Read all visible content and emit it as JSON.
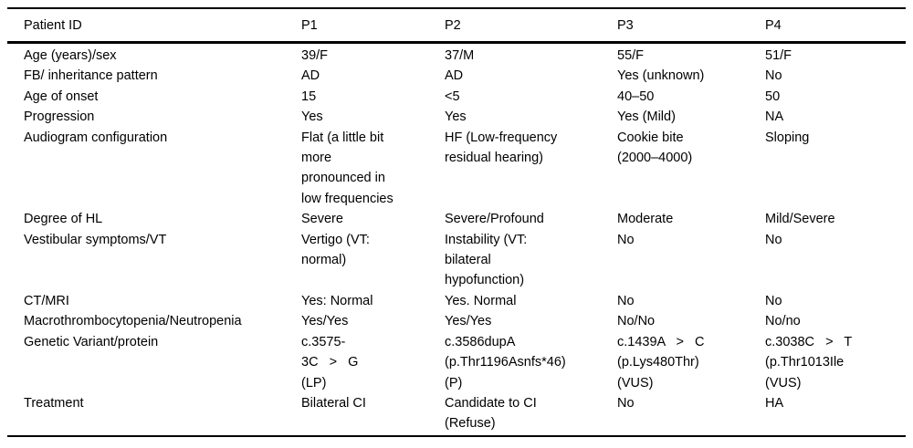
{
  "table": {
    "header": [
      "Patient ID",
      "P1",
      "P2",
      "P3",
      "P4"
    ],
    "rows": [
      {
        "label": "Age (years)/sex",
        "cells": [
          "39/F",
          "37/M",
          "55/F",
          "51/F"
        ]
      },
      {
        "label": "FB/ inheritance pattern",
        "cells": [
          "AD",
          "AD",
          "Yes (unknown)",
          "No"
        ]
      },
      {
        "label": "Age of onset",
        "cells": [
          "15",
          "<5",
          "40–50",
          "50"
        ]
      },
      {
        "label": "Progression",
        "cells": [
          "Yes",
          "Yes",
          "Yes (Mild)",
          "NA"
        ]
      },
      {
        "label": "Audiogram configuration",
        "cells": [
          "Flat (a little bit\nmore\npronounced in\nlow frequencies",
          "HF (Low-frequency\nresidual hearing)",
          "Cookie bite\n(2000–4000)",
          "Sloping"
        ]
      },
      {
        "label": "Degree of HL",
        "cells": [
          "Severe",
          "Severe/Profound",
          "Moderate",
          "Mild/Severe"
        ]
      },
      {
        "label": "Vestibular symptoms/VT",
        "cells": [
          "Vertigo (VT:\nnormal)",
          "Instability (VT:\nbilateral\nhypofunction)",
          "No",
          "No"
        ]
      },
      {
        "label": "CT/MRI",
        "cells": [
          "Yes: Normal",
          "Yes. Normal",
          "No",
          "No"
        ]
      },
      {
        "label": "Macrothrombocytopenia/Neutropenia",
        "cells": [
          "Yes/Yes",
          "Yes/Yes",
          "No/No",
          "No/no"
        ]
      },
      {
        "label": "Genetic Variant/protein",
        "cells": [
          "c.3575-\n3C   >   G\n(LP)",
          "c.3586dupA\n(p.Thr1196Asnfs*46)\n(P)",
          "c.1439A   >   C\n(p.Lys480Thr)\n(VUS)",
          "c.3038C   >   T\n(p.Thr1013Ile\n(VUS)"
        ]
      },
      {
        "label": "Treatment",
        "cells": [
          "Bilateral CI",
          "Candidate to CI\n(Refuse)",
          "No",
          "HA"
        ]
      }
    ]
  }
}
